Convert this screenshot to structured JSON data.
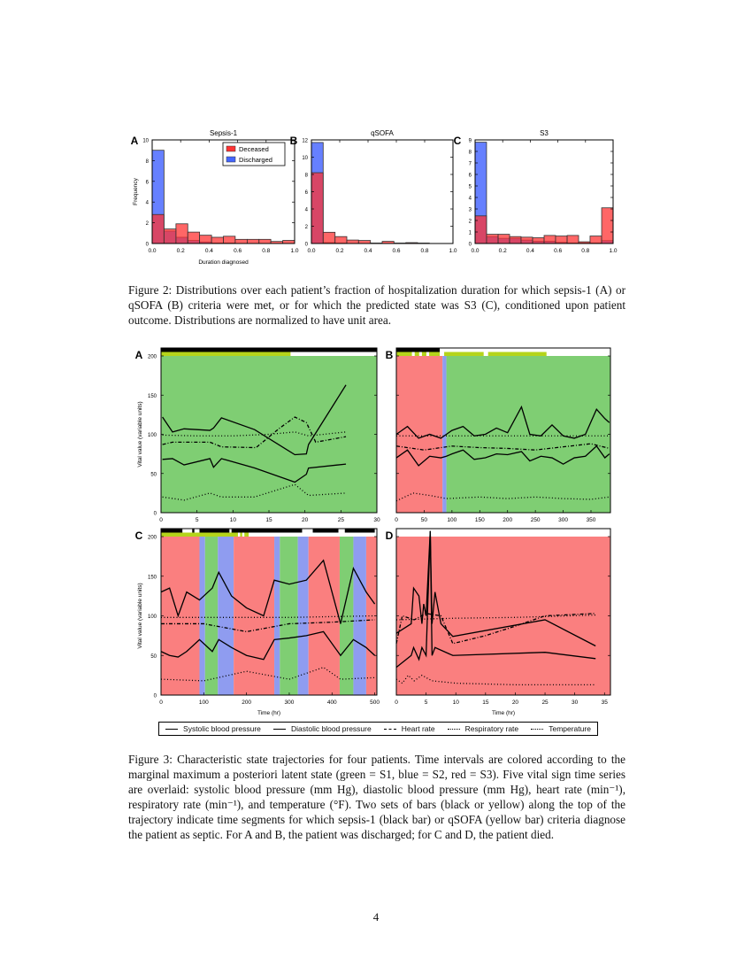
{
  "figure2": {
    "caption_prefix": "Figure 2:",
    "caption": "Distributions over each patient’s fraction of hospitalization duration for which sepsis-1 (A) or qSOFA (B) criteria were met, or for which the predicted state was S3 (C), conditioned upon patient outcome. Distributions are normalized to have unit area.",
    "legend": {
      "deceased": "Deceased",
      "discharged": "Discharged"
    },
    "xlabel": "Duration diagnosed",
    "ylabel": "Frequency",
    "panels": [
      {
        "letter": "A",
        "title": "Sepsis-1"
      },
      {
        "letter": "B",
        "title": "qSOFA"
      },
      {
        "letter": "C",
        "title": "S3"
      }
    ]
  },
  "figure3": {
    "caption_prefix": "Figure 3:",
    "caption": "Characteristic state trajectories for four patients. Time intervals are colored according to the marginal maximum a posteriori latent state (green = S1, blue = S2, red = S3). Five vital sign time series are overlaid: systolic blood pressure (mm Hg), diastolic blood pressure (mm Hg), heart rate (min⁻¹), respiratory rate (min⁻¹), and temperature (°F). Two sets of bars (black or yellow) along the top of the trajectory indicate time segments for which sepsis-1 (black bar) or qSOFA (yellow bar) criteria diagnose the patient as septic. For A and B, the patient was discharged; for C and D, the patient died.",
    "ylabel": "Vital value (variable units)",
    "xlabel": "Time (hr)",
    "panels": [
      {
        "letter": "A"
      },
      {
        "letter": "B"
      },
      {
        "letter": "C"
      },
      {
        "letter": "D"
      }
    ],
    "legend": [
      {
        "label": "Systolic blood pressure",
        "style": "solid"
      },
      {
        "label": "Diastolic blood pressure",
        "style": "solid"
      },
      {
        "label": "Heart rate",
        "style": "dashdot"
      },
      {
        "label": "Respiratory rate",
        "style": "dotted"
      },
      {
        "label": "Temperature",
        "style": "dotted"
      }
    ],
    "state_colors": {
      "S1": "#7fce73",
      "S2": "#8f9cf0",
      "S3": "#fa7f7f"
    }
  },
  "page_number": "4",
  "chart_data": [
    {
      "type": "bar",
      "title": "Sepsis-1",
      "panel": "A",
      "xlabel": "Duration diagnosed",
      "ylabel": "Frequency",
      "xlim": [
        0.0,
        1.0
      ],
      "ylim": [
        0,
        10
      ],
      "xticks": [
        0.0,
        0.2,
        0.4,
        0.6,
        0.8,
        1.0
      ],
      "yticks": [
        0,
        2,
        4,
        6,
        8,
        10
      ],
      "bin_edges": [
        0.0,
        0.083,
        0.167,
        0.25,
        0.333,
        0.417,
        0.5,
        0.583,
        0.667,
        0.75,
        0.833,
        0.917,
        1.0
      ],
      "series": [
        {
          "name": "Deceased",
          "color": "#ff3333",
          "values": [
            2.8,
            1.4,
            1.9,
            1.1,
            0.8,
            0.6,
            0.7,
            0.4,
            0.4,
            0.4,
            0.2,
            0.3
          ]
        },
        {
          "name": "Discharged",
          "color": "#3355ff",
          "values": [
            9.0,
            1.2,
            0.6,
            0.3,
            0.15,
            0.05,
            0.05,
            0.0,
            0.0,
            0.0,
            0.0,
            0.0
          ]
        }
      ],
      "legend_position": "upper right"
    },
    {
      "type": "bar",
      "title": "qSOFA",
      "panel": "B",
      "xlim": [
        0.0,
        1.0
      ],
      "ylim": [
        0,
        12
      ],
      "xticks": [
        0.0,
        0.2,
        0.4,
        0.6,
        0.8,
        1.0
      ],
      "yticks": [
        0,
        2,
        4,
        6,
        8,
        10,
        12
      ],
      "bin_edges": [
        0.0,
        0.083,
        0.167,
        0.25,
        0.333,
        0.417,
        0.5,
        0.583,
        0.667,
        0.75,
        0.833,
        0.917,
        1.0
      ],
      "series": [
        {
          "name": "Deceased",
          "color": "#ff3333",
          "values": [
            8.2,
            1.3,
            0.8,
            0.4,
            0.35,
            0.05,
            0.25,
            0.05,
            0.1,
            0.05,
            0.0,
            0.0
          ]
        },
        {
          "name": "Discharged",
          "color": "#3355ff",
          "values": [
            11.7,
            0.1,
            0.05,
            0.0,
            0.0,
            0.0,
            0.0,
            0.0,
            0.0,
            0.0,
            0.0,
            0.0
          ]
        }
      ]
    },
    {
      "type": "bar",
      "title": "S3",
      "panel": "C",
      "xlim": [
        0.0,
        1.0
      ],
      "ylim": [
        0,
        9
      ],
      "xticks": [
        0.0,
        0.2,
        0.4,
        0.6,
        0.8,
        1.0
      ],
      "yticks": [
        0,
        1,
        2,
        3,
        4,
        5,
        6,
        7,
        8,
        9
      ],
      "bin_edges": [
        0.0,
        0.083,
        0.167,
        0.25,
        0.333,
        0.417,
        0.5,
        0.583,
        0.667,
        0.75,
        0.833,
        0.917,
        1.0
      ],
      "series": [
        {
          "name": "Deceased",
          "color": "#ff3333",
          "values": [
            2.4,
            0.8,
            0.8,
            0.6,
            0.55,
            0.5,
            0.7,
            0.65,
            0.7,
            0.15,
            0.65,
            3.1
          ]
        },
        {
          "name": "Discharged",
          "color": "#3355ff",
          "values": [
            8.8,
            0.6,
            0.45,
            0.45,
            0.3,
            0.2,
            0.2,
            0.1,
            0.05,
            0.05,
            0.05,
            0.25
          ]
        }
      ]
    },
    {
      "type": "line",
      "panel": "A",
      "xlim": [
        0,
        30
      ],
      "ylim": [
        0,
        210
      ],
      "xticks": [
        0,
        5,
        10,
        15,
        20,
        25,
        30
      ],
      "yticks": [
        0,
        50,
        100,
        150,
        200
      ],
      "ylabel": "Vital value (variable units)",
      "state_segments": [
        {
          "state": "S1",
          "start": 0,
          "end": 30
        }
      ],
      "sepsis1_bar": [
        [
          0,
          30
        ]
      ],
      "qsofa_bar": [
        [
          0,
          18
        ]
      ],
      "series": [
        {
          "name": "Systolic blood pressure",
          "x": [
            0.2,
            1.6,
            3.2,
            6.8,
            7.3,
            8.4,
            13,
            18.6,
            20.2,
            20.5,
            25.7
          ],
          "y": [
            122,
            103,
            107,
            105,
            108,
            121,
            106,
            74,
            75,
            87,
            163
          ]
        },
        {
          "name": "Diastolic blood pressure",
          "x": [
            0.2,
            1.6,
            3.2,
            6.8,
            7.3,
            8.4,
            13,
            18.6,
            20.2,
            20.5,
            25.7
          ],
          "y": [
            68,
            69,
            61,
            69,
            58,
            69,
            57,
            39,
            49,
            57,
            62
          ]
        },
        {
          "name": "Heart rate",
          "x": [
            0.2,
            1.6,
            3.2,
            6.8,
            8.4,
            13.2,
            16.5,
            18.6,
            20.2,
            21.5,
            25.7
          ],
          "y": [
            87,
            90,
            90,
            90,
            84,
            83,
            108,
            122,
            115,
            90,
            97
          ]
        },
        {
          "name": "Respiratory rate",
          "x": [
            0.2,
            3.2,
            6.8,
            8.4,
            13,
            18.6,
            20.5,
            25.7
          ],
          "y": [
            20,
            16,
            25,
            20,
            20,
            36,
            22,
            25
          ]
        },
        {
          "name": "Temperature",
          "x": [
            0.2,
            5,
            10,
            15,
            18.6,
            20.5,
            25.7
          ],
          "y": [
            99,
            98,
            98,
            100,
            103,
            98,
            103
          ]
        }
      ]
    },
    {
      "type": "line",
      "panel": "B",
      "xlim": [
        0,
        385
      ],
      "ylim": [
        0,
        210
      ],
      "xticks": [
        0,
        50,
        100,
        150,
        200,
        250,
        300,
        350
      ],
      "state_segments": [
        {
          "state": "S3",
          "start": 0,
          "end": 83
        },
        {
          "state": "S2",
          "start": 83,
          "end": 90
        },
        {
          "state": "S1",
          "start": 90,
          "end": 385
        }
      ],
      "sepsis1_bar": [
        [
          0,
          78
        ]
      ],
      "qsofa_bar": [
        [
          0,
          28
        ],
        [
          33,
          41
        ],
        [
          46,
          54
        ],
        [
          59,
          78
        ],
        [
          86,
          157
        ],
        [
          165,
          270
        ]
      ],
      "series": [
        {
          "name": "Systolic blood pressure",
          "x": [
            0,
            20,
            40,
            60,
            80,
            90,
            100,
            120,
            140,
            160,
            180,
            200,
            225,
            240,
            260,
            280,
            300,
            320,
            340,
            360,
            375,
            383
          ],
          "y": [
            100,
            110,
            95,
            100,
            95,
            100,
            105,
            110,
            98,
            100,
            108,
            102,
            135,
            100,
            98,
            112,
            98,
            95,
            100,
            132,
            120,
            115
          ]
        },
        {
          "name": "Diastolic blood pressure",
          "x": [
            0,
            20,
            40,
            60,
            80,
            90,
            100,
            120,
            140,
            160,
            180,
            200,
            225,
            240,
            260,
            280,
            300,
            320,
            340,
            360,
            375,
            383
          ],
          "y": [
            70,
            80,
            60,
            72,
            70,
            72,
            75,
            80,
            68,
            70,
            75,
            74,
            78,
            66,
            72,
            70,
            62,
            70,
            72,
            85,
            70,
            75
          ]
        },
        {
          "name": "Heart rate",
          "x": [
            0,
            50,
            100,
            150,
            200,
            250,
            300,
            350,
            383
          ],
          "y": [
            85,
            80,
            85,
            83,
            82,
            80,
            84,
            88,
            82
          ]
        },
        {
          "name": "Respiratory rate",
          "x": [
            0,
            30,
            60,
            90,
            150,
            200,
            250,
            300,
            350,
            383
          ],
          "y": [
            15,
            25,
            22,
            18,
            20,
            18,
            20,
            18,
            17,
            20
          ]
        },
        {
          "name": "Temperature",
          "x": [
            0,
            100,
            200,
            300,
            383
          ],
          "y": [
            98,
            98,
            98,
            98,
            98
          ]
        }
      ]
    },
    {
      "type": "line",
      "panel": "C",
      "xlim": [
        0,
        505
      ],
      "ylim": [
        0,
        210
      ],
      "xticks": [
        0,
        100,
        200,
        300,
        400,
        500
      ],
      "xlabel": "Time (hr)",
      "state_segments": [
        {
          "state": "S3",
          "start": 0,
          "end": 90
        },
        {
          "state": "S2",
          "start": 90,
          "end": 103
        },
        {
          "state": "S1",
          "start": 103,
          "end": 133
        },
        {
          "state": "S2",
          "start": 133,
          "end": 170
        },
        {
          "state": "S3",
          "start": 170,
          "end": 265
        },
        {
          "state": "S2",
          "start": 265,
          "end": 278
        },
        {
          "state": "S1",
          "start": 278,
          "end": 320
        },
        {
          "state": "S2",
          "start": 320,
          "end": 345
        },
        {
          "state": "S3",
          "start": 345,
          "end": 418
        },
        {
          "state": "S1",
          "start": 418,
          "end": 450
        },
        {
          "state": "S2",
          "start": 450,
          "end": 480
        },
        {
          "state": "S3",
          "start": 480,
          "end": 505
        }
      ],
      "sepsis1_bar": [
        [
          0,
          50
        ],
        [
          73,
          78
        ],
        [
          90,
          160
        ],
        [
          165,
          330
        ],
        [
          355,
          415
        ],
        [
          430,
          500
        ]
      ],
      "qsofa_bar": [
        [
          0,
          180
        ],
        [
          185,
          190
        ],
        [
          195,
          205
        ]
      ],
      "series": [
        {
          "name": "Systolic blood pressure",
          "x": [
            0,
            20,
            40,
            60,
            90,
            120,
            135,
            165,
            200,
            240,
            265,
            300,
            340,
            380,
            420,
            450,
            480,
            500
          ],
          "y": [
            130,
            135,
            100,
            130,
            120,
            135,
            155,
            125,
            110,
            100,
            145,
            140,
            145,
            170,
            90,
            160,
            130,
            115
          ]
        },
        {
          "name": "Diastolic blood pressure",
          "x": [
            0,
            20,
            40,
            60,
            90,
            120,
            135,
            165,
            200,
            240,
            265,
            300,
            340,
            380,
            420,
            450,
            480,
            500
          ],
          "y": [
            55,
            50,
            48,
            55,
            70,
            55,
            70,
            60,
            50,
            45,
            70,
            72,
            75,
            80,
            50,
            70,
            60,
            50
          ]
        },
        {
          "name": "Heart rate",
          "x": [
            0,
            100,
            200,
            300,
            400,
            500
          ],
          "y": [
            90,
            90,
            80,
            90,
            92,
            95
          ]
        },
        {
          "name": "Respiratory rate",
          "x": [
            0,
            100,
            200,
            300,
            380,
            420,
            500
          ],
          "y": [
            20,
            18,
            30,
            20,
            35,
            20,
            22
          ]
        },
        {
          "name": "Temperature",
          "x": [
            0,
            100,
            200,
            300,
            400,
            500
          ],
          "y": [
            98,
            98,
            98,
            98,
            99,
            100
          ]
        }
      ]
    },
    {
      "type": "line",
      "panel": "D",
      "xlim": [
        0,
        36
      ],
      "ylim": [
        0,
        210
      ],
      "xticks": [
        0,
        5,
        10,
        15,
        20,
        25,
        30,
        35
      ],
      "xlabel": "Time (hr)",
      "state_segments": [
        {
          "state": "S3",
          "start": 0,
          "end": 36
        }
      ],
      "sepsis1_bar": [],
      "qsofa_bar": [],
      "series": [
        {
          "name": "Systolic blood pressure",
          "x": [
            0,
            2.5,
            2.9,
            3.8,
            4.3,
            4.6,
            5.0,
            5.7,
            6.0,
            6.5,
            7.5,
            9.5,
            25,
            33.5
          ],
          "y": [
            78,
            90,
            135,
            125,
            90,
            115,
            100,
            207,
            90,
            130,
            90,
            74,
            95,
            62
          ]
        },
        {
          "name": "Diastolic blood pressure",
          "x": [
            0,
            2.5,
            2.9,
            3.8,
            4.3,
            5.0,
            5.7,
            6.0,
            6.5,
            9.5,
            25,
            33.5
          ],
          "y": [
            35,
            50,
            60,
            45,
            60,
            50,
            207,
            50,
            60,
            50,
            54,
            46
          ]
        },
        {
          "name": "Heart rate",
          "x": [
            0,
            1,
            3,
            5,
            7.5,
            9.5,
            15,
            20,
            25,
            33.5
          ],
          "y": [
            65,
            100,
            95,
            103,
            100,
            65,
            75,
            87,
            100,
            103
          ]
        },
        {
          "name": "Respiratory rate",
          "x": [
            0,
            1,
            2,
            3,
            4.3,
            6,
            10,
            20,
            33.5
          ],
          "y": [
            20,
            15,
            25,
            18,
            25,
            18,
            15,
            13,
            13
          ]
        },
        {
          "name": "Temperature",
          "x": [
            0,
            10,
            20,
            33.5
          ],
          "y": [
            95,
            97,
            98,
            101
          ]
        }
      ]
    }
  ]
}
